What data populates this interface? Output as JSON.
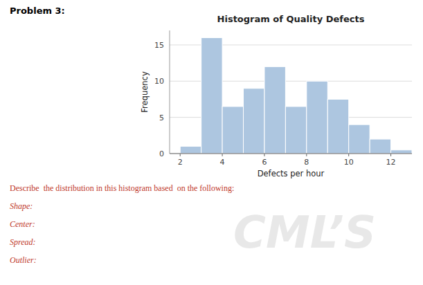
{
  "chart_data": {
    "type": "histogram",
    "title": "Histogram of Quality Defects",
    "xlabel": "Defects per hour",
    "ylabel": "Frequency",
    "bins": [
      2,
      3,
      4,
      5,
      6,
      7,
      8,
      9,
      10,
      11,
      12,
      13
    ],
    "values": [
      1,
      16,
      6.5,
      9,
      12,
      6.5,
      10,
      7.5,
      4,
      2,
      0.5
    ],
    "color": "#adc6e0",
    "xlim": [
      1.5,
      13.0
    ],
    "ylim": [
      0,
      17
    ],
    "xticks": [
      2,
      4,
      6,
      8,
      10,
      12
    ],
    "yticks": [
      0,
      5,
      10,
      15
    ],
    "grid": true,
    "annotations": [
      "Problem 3:",
      "Describe  the distribution in this histogram based  on the following:",
      "Shape:",
      "Center:",
      "Spread:",
      "Outlier:",
      "CML’S"
    ]
  }
}
